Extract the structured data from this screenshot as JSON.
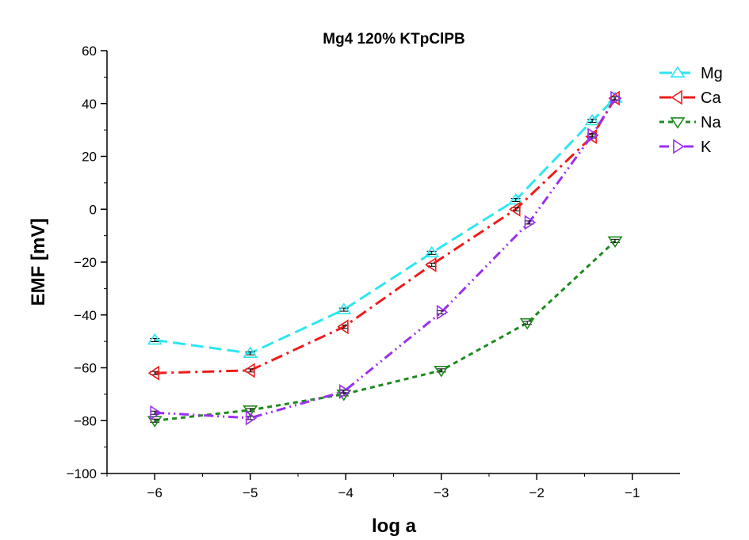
{
  "chart_data": {
    "type": "line",
    "title": "Mg4 120% KTpClPB",
    "xlabel": "log a",
    "ylabel": "EMF [mV]",
    "xlim": [
      -6.5,
      -0.5
    ],
    "ylim": [
      -100,
      60
    ],
    "xticks": [
      -6,
      -5,
      -4,
      -3,
      -2,
      -1
    ],
    "xtick_labels": [
      "−6",
      "−5",
      "−4",
      "−3",
      "−2",
      "−1"
    ],
    "yticks": [
      -100,
      -80,
      -60,
      -40,
      -20,
      0,
      20,
      40,
      60
    ],
    "ytick_labels": [
      "−100",
      "−80",
      "−60",
      "−40",
      "−20",
      "0",
      "20",
      "40",
      "60"
    ],
    "grid": false,
    "legend_position": "right",
    "series": [
      {
        "name": "Mg",
        "color": "#2ee6f0",
        "dash": "long-dash",
        "marker": "triangle-up",
        "x": [
          -6.0,
          -5.0,
          -4.02,
          -3.1,
          -2.22,
          -1.42,
          -1.18
        ],
        "y": [
          -49.5,
          -54.5,
          -38.0,
          -16.5,
          3.5,
          33.5,
          42.0
        ]
      },
      {
        "name": "Ca",
        "color": "#ee1c1c",
        "dash": "dash-dot",
        "marker": "triangle-left",
        "x": [
          -6.0,
          -5.0,
          -4.02,
          -3.1,
          -2.22,
          -1.42,
          -1.18
        ],
        "y": [
          -62.0,
          -61.0,
          -44.5,
          -21.0,
          0.0,
          27.5,
          42.0
        ]
      },
      {
        "name": "Na",
        "color": "#1f8a1f",
        "dash": "short-dash",
        "marker": "triangle-down",
        "x": [
          -6.0,
          -5.0,
          -4.02,
          -3.0,
          -2.1,
          -1.18
        ],
        "y": [
          -80.0,
          -76.0,
          -70.0,
          -61.0,
          -43.0,
          -12.0
        ]
      },
      {
        "name": "K",
        "color": "#9b30f0",
        "dash": "dash-dot-dot",
        "marker": "triangle-right",
        "x": [
          -6.0,
          -5.0,
          -4.02,
          -3.0,
          -2.08,
          -1.42,
          -1.18
        ],
        "y": [
          -77.0,
          -79.0,
          -69.0,
          -39.0,
          -5.0,
          28.0,
          42.0
        ]
      }
    ]
  }
}
